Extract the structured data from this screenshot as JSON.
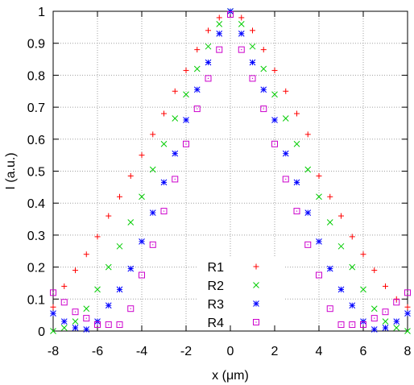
{
  "chart_data": {
    "type": "scatter",
    "xlabel": "x (μm)",
    "ylabel": "I (a.u.)",
    "xlim": [
      -8,
      8
    ],
    "ylim": [
      0,
      1
    ],
    "xticks": [
      "-8",
      "-6",
      "-4",
      "-2",
      "0",
      "2",
      "4",
      "6",
      "8"
    ],
    "yticks": [
      "0",
      "0.1",
      "0.2",
      "0.3",
      "0.4",
      "0.5",
      "0.6",
      "0.7",
      "0.8",
      "0.9",
      "1"
    ],
    "grid": true,
    "legend_position": "center",
    "series": [
      {
        "name": "R1",
        "marker": "plus",
        "color": "#ff0000",
        "x": [
          -8,
          -7.5,
          -7,
          -6.5,
          -6,
          -5.5,
          -5,
          -4.5,
          -4,
          -3.5,
          -3,
          -2.5,
          -2,
          -1.5,
          -1,
          -0.5,
          0,
          0.5,
          1,
          1.5,
          2,
          2.5,
          3,
          3.5,
          4,
          4.5,
          5,
          5.5,
          6,
          6.5,
          7,
          7.5,
          8
        ],
        "y": [
          0.075,
          0.14,
          0.19,
          0.24,
          0.295,
          0.36,
          0.42,
          0.485,
          0.55,
          0.615,
          0.68,
          0.75,
          0.815,
          0.88,
          0.94,
          0.98,
          1.0,
          0.98,
          0.94,
          0.88,
          0.815,
          0.75,
          0.68,
          0.615,
          0.485,
          0.42,
          0.36,
          0.295,
          0.24,
          0.19,
          0.14,
          0.1,
          0.075
        ]
      },
      {
        "name": "R2",
        "marker": "cross",
        "color": "#00cc00",
        "x": [
          -8,
          -7.5,
          -7,
          -6.5,
          -6,
          -5.5,
          -5,
          -4.5,
          -4,
          -3.5,
          -3,
          -2.5,
          -2,
          -1.5,
          -1,
          -0.5,
          0,
          0.5,
          1,
          1.5,
          2,
          2.5,
          3,
          3.5,
          4,
          4.5,
          5,
          5.5,
          6,
          6.5,
          7,
          7.5,
          8
        ],
        "y": [
          0.0,
          0.01,
          0.03,
          0.07,
          0.13,
          0.2,
          0.265,
          0.34,
          0.42,
          0.505,
          0.585,
          0.665,
          0.74,
          0.82,
          0.89,
          0.96,
          1.0,
          0.96,
          0.89,
          0.82,
          0.74,
          0.665,
          0.585,
          0.505,
          0.42,
          0.34,
          0.265,
          0.2,
          0.13,
          0.07,
          0.03,
          0.01,
          0.0
        ]
      },
      {
        "name": "R3",
        "marker": "asterisk",
        "color": "#0000ff",
        "x": [
          -8,
          -7.5,
          -7,
          -6.5,
          -6,
          -5.5,
          -5,
          -4.5,
          -4,
          -3.5,
          -3,
          -2.5,
          -2,
          -1.5,
          -1,
          -0.5,
          0,
          0.5,
          1,
          1.5,
          2,
          2.5,
          3,
          3.5,
          4,
          4.5,
          5,
          5.5,
          6,
          6.5,
          7,
          7.5,
          8
        ],
        "y": [
          0.055,
          0.03,
          0.01,
          0.005,
          0.03,
          0.08,
          0.13,
          0.195,
          0.28,
          0.37,
          0.465,
          0.555,
          0.66,
          0.755,
          0.84,
          0.93,
          1.0,
          0.93,
          0.84,
          0.755,
          0.66,
          0.555,
          0.465,
          0.37,
          0.28,
          0.195,
          0.13,
          0.08,
          0.03,
          0.005,
          0.01,
          0.03,
          0.055
        ]
      },
      {
        "name": "R4",
        "marker": "square-dot",
        "color": "#cc00cc",
        "x": [
          -8,
          -7.5,
          -7,
          -6.5,
          -6,
          -5.5,
          -5,
          -4.5,
          -4,
          -3.5,
          -3,
          -2.5,
          -2,
          -1.5,
          -1,
          -0.5,
          0,
          0.5,
          1,
          1.5,
          2,
          2.5,
          3,
          3.5,
          4,
          4.5,
          5,
          5.5,
          6,
          6.5,
          7,
          7.5,
          8
        ],
        "y": [
          0.12,
          0.09,
          0.06,
          0.04,
          0.02,
          0.02,
          0.02,
          0.07,
          0.175,
          0.27,
          0.375,
          0.475,
          0.585,
          0.695,
          0.79,
          0.88,
          0.99,
          0.88,
          0.79,
          0.695,
          0.585,
          0.475,
          0.375,
          0.27,
          0.175,
          0.07,
          0.02,
          0.02,
          0.02,
          0.04,
          0.06,
          0.09,
          0.12
        ]
      }
    ]
  }
}
